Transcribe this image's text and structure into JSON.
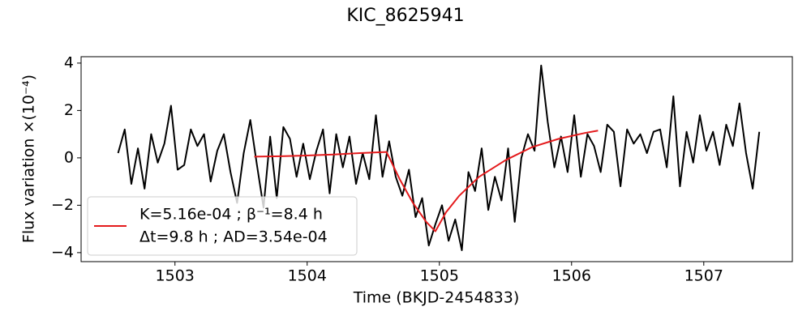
{
  "chart_data": {
    "type": "line",
    "title": "KIC_8625941",
    "xlabel": "Time (BKJD-2454833)",
    "ylabel": "Flux variation ×(10⁻⁴)",
    "xlim": [
      1502.29,
      1507.67
    ],
    "ylim": [
      -4.38,
      4.27
    ],
    "xticks": [
      1503,
      1504,
      1505,
      1506,
      1507
    ],
    "yticks": [
      {
        "value": -4,
        "label": "−4"
      },
      {
        "value": -2,
        "label": "−2"
      },
      0,
      2,
      4
    ],
    "legend": "lower left",
    "series": [
      {
        "color": "#000000",
        "x": [
          1502.57,
          1502.62,
          1502.67,
          1502.72,
          1502.77,
          1502.82,
          1502.87,
          1502.92,
          1502.97,
          1503.02,
          1503.07,
          1503.12,
          1503.17,
          1503.22,
          1503.27,
          1503.32,
          1503.37,
          1503.42,
          1503.47,
          1503.52,
          1503.57,
          1503.62,
          1503.67,
          1503.72,
          1503.77,
          1503.82,
          1503.87,
          1503.92,
          1503.97,
          1504.02,
          1504.07,
          1504.12,
          1504.17,
          1504.22,
          1504.27,
          1504.32,
          1504.37,
          1504.42,
          1504.47,
          1504.52,
          1504.57,
          1504.62,
          1504.67,
          1504.72,
          1504.77,
          1504.82,
          1504.87,
          1504.92,
          1504.97,
          1505.02,
          1505.07,
          1505.12,
          1505.17,
          1505.22,
          1505.27,
          1505.32,
          1505.37,
          1505.42,
          1505.47,
          1505.52,
          1505.57,
          1505.62,
          1505.67,
          1505.72,
          1505.77,
          1505.82,
          1505.87,
          1505.92,
          1505.97,
          1506.02,
          1506.07,
          1506.12,
          1506.17,
          1506.22,
          1506.27,
          1506.32,
          1506.37,
          1506.42,
          1506.47,
          1506.52,
          1506.57,
          1506.62,
          1506.67,
          1506.72,
          1506.77,
          1506.82,
          1506.87,
          1506.92,
          1506.97,
          1507.02,
          1507.07,
          1507.12,
          1507.17,
          1507.22,
          1507.27,
          1507.32,
          1507.37,
          1507.42
        ],
        "values": [
          0.2,
          1.2,
          -1.1,
          0.4,
          -1.3,
          1.0,
          -0.2,
          0.6,
          2.2,
          -0.5,
          -0.3,
          1.2,
          0.5,
          1.0,
          -1.0,
          0.3,
          1.0,
          -0.6,
          -1.9,
          0.2,
          1.6,
          -0.3,
          -2.1,
          0.9,
          -1.7,
          1.3,
          0.8,
          -0.8,
          0.6,
          -0.9,
          0.3,
          1.2,
          -1.5,
          1.0,
          -0.4,
          0.9,
          -1.1,
          0.2,
          -0.9,
          1.8,
          -0.8,
          0.7,
          -0.8,
          -1.6,
          -0.5,
          -2.5,
          -1.7,
          -3.7,
          -2.8,
          -2.0,
          -3.5,
          -2.6,
          -3.9,
          -0.6,
          -1.4,
          0.4,
          -2.2,
          -0.8,
          -1.8,
          0.4,
          -2.7,
          0.0,
          1.0,
          0.3,
          3.9,
          1.5,
          -0.4,
          0.9,
          -0.6,
          1.8,
          -0.8,
          1.0,
          0.5,
          -0.6,
          1.4,
          1.1,
          -1.2,
          1.2,
          0.6,
          1.0,
          0.2,
          1.1,
          1.2,
          -0.4,
          2.6,
          -1.2,
          1.1,
          -0.2,
          1.8,
          0.3,
          1.1,
          -0.3,
          1.4,
          0.5,
          2.3,
          0.2,
          -1.3,
          1.1
        ]
      },
      {
        "name": [
          "K=5.16e-04 ; β⁻¹=8.4 h",
          "Δt=9.8 h ; AD=3.54e-04"
        ],
        "color": "#e41a1c",
        "x": [
          1503.6,
          1503.8,
          1504.0,
          1504.2,
          1504.4,
          1504.6,
          1504.7,
          1504.8,
          1504.9,
          1504.97,
          1505.05,
          1505.15,
          1505.3,
          1505.5,
          1505.7,
          1505.9,
          1506.1,
          1506.2
        ],
        "values": [
          0.05,
          0.07,
          0.1,
          0.14,
          0.2,
          0.25,
          -0.9,
          -1.9,
          -2.7,
          -3.1,
          -2.3,
          -1.6,
          -0.8,
          -0.1,
          0.45,
          0.8,
          1.05,
          1.15
        ]
      }
    ]
  }
}
